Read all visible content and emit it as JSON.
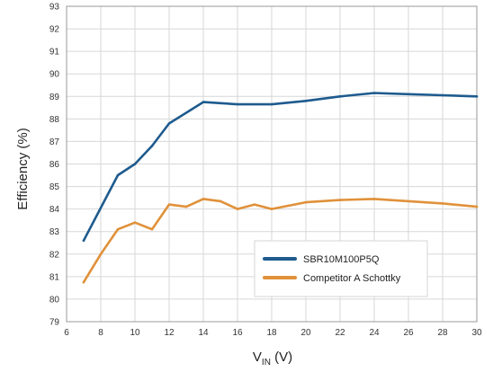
{
  "chart_data": {
    "type": "line",
    "title": "",
    "xlabel": "V",
    "xlabel_sub": "IN",
    "xlabel_unit": " (V)",
    "ylabel": "Efficiency (%)",
    "xlim": [
      6,
      30
    ],
    "ylim": [
      79,
      93
    ],
    "x_ticks": [
      "6",
      "8",
      "10",
      "12",
      "14",
      "16",
      "18",
      "20",
      "22",
      "24",
      "26",
      "28",
      "30"
    ],
    "y_ticks": [
      "79",
      "80",
      "81",
      "82",
      "83",
      "84",
      "85",
      "86",
      "87",
      "88",
      "89",
      "90",
      "91",
      "92",
      "93"
    ],
    "grid": true,
    "legend_position": "lower-right",
    "series": [
      {
        "name": "SBR10M100P5Q",
        "color": "#1e5b8e",
        "x": [
          7,
          9,
          10,
          11,
          12,
          14,
          15,
          16,
          18,
          20,
          22,
          24,
          26,
          28,
          30
        ],
        "y": [
          82.6,
          85.5,
          86.0,
          86.8,
          87.8,
          88.75,
          88.7,
          88.65,
          88.65,
          88.8,
          89.0,
          89.15,
          89.1,
          89.05,
          89.0
        ]
      },
      {
        "name": "Competitor A Schottky",
        "color": "#e0913a",
        "x": [
          7,
          8,
          9,
          10,
          11,
          12,
          13,
          14,
          15,
          16,
          17,
          18,
          20,
          22,
          24,
          26,
          28,
          30
        ],
        "y": [
          80.75,
          82.0,
          83.1,
          83.4,
          83.1,
          84.2,
          84.1,
          84.45,
          84.35,
          84.0,
          84.2,
          84.0,
          84.3,
          84.4,
          84.45,
          84.35,
          84.25,
          84.1
        ]
      }
    ]
  }
}
